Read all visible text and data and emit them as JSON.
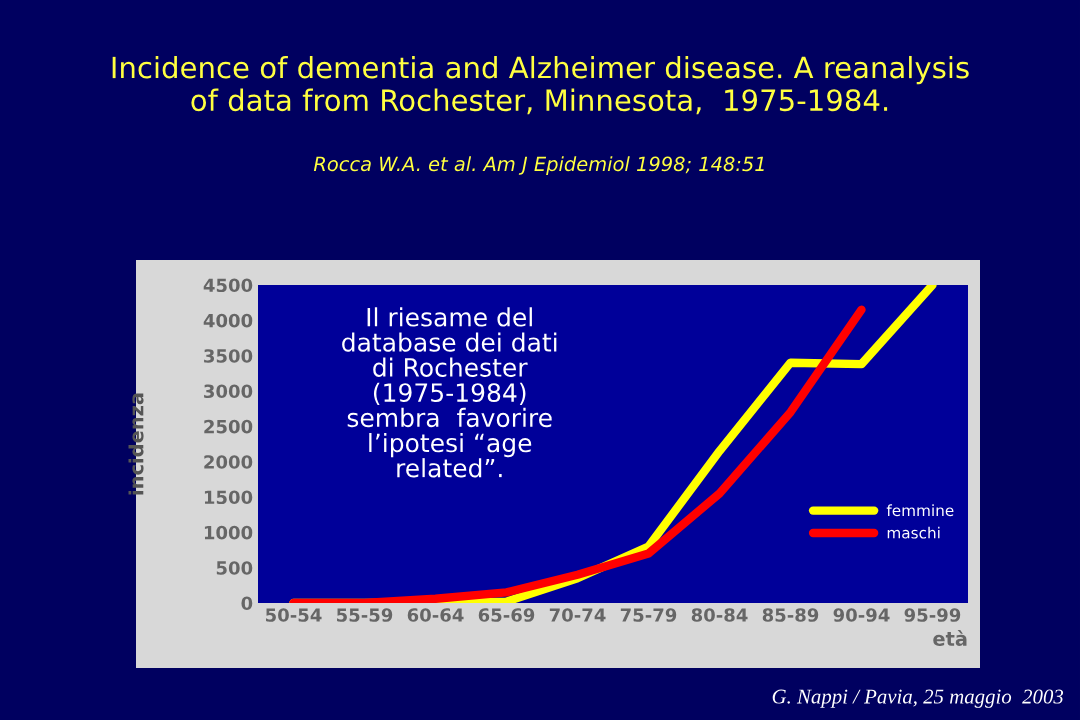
{
  "chart_data": {
    "type": "line",
    "title": "Incidence of dementia and Alzheimer disease. A reanalysis\nof data from Rochester, Minnesota,  1975-1984.",
    "annotations": [
      "Rocca W.A. et al. Am J Epidemiol 1998; 148:51",
      "Il riesame del\ndatabase dei dati\ndi Rochester\n(1975-1984)\nsembra  favorire\nl’ipotesi “age\nrelated”.",
      "G. Nappi / Pavia, 25 maggio  2003"
    ],
    "xlabel": "età",
    "ylabel": "incidenza",
    "categories": [
      "50-54",
      "55-59",
      "60-64",
      "65-69",
      "70-74",
      "75-79",
      "80-84",
      "85-89",
      "90-94",
      "95-99"
    ],
    "series": [
      {
        "name": "femmine",
        "color": "#ffff00",
        "values": [
          0,
          0,
          10,
          20,
          350,
          800,
          2150,
          3400,
          3380,
          4500
        ]
      },
      {
        "name": "maschi",
        "color": "#ff0000",
        "values": [
          0,
          0,
          60,
          150,
          400,
          700,
          1550,
          2700,
          4150,
          null
        ]
      }
    ],
    "ylim": [
      0,
      4500
    ],
    "yticks": [
      0,
      500,
      1000,
      1500,
      2000,
      2500,
      3000,
      3500,
      4000,
      4500
    ],
    "grid": false,
    "legend": "bottom right",
    "marker": "none",
    "line_style": "solid"
  }
}
